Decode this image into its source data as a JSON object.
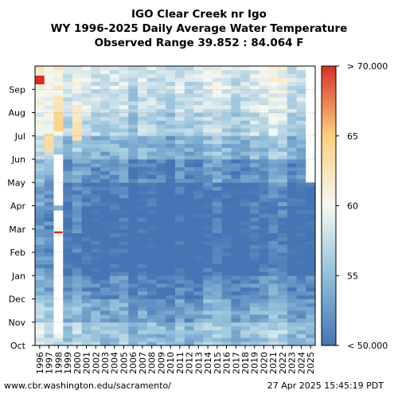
{
  "title": {
    "line1": "IGO Clear Creek nr Igo",
    "line2": "WY 1996-2025 Daily Average Water Temperature",
    "line3": "Observed Range 39.852 : 84.064 F"
  },
  "footer": {
    "source": "www.cbr.washington.edu/sacramento/",
    "timestamp": "27 Apr 2025 15:45:19 PDT"
  },
  "chart_data": {
    "type": "heatmap",
    "title": "IGO Clear Creek nr Igo WY 1996-2025 Daily Average Water Temperature",
    "unit": "F",
    "x": [
      "1996",
      "1997",
      "1998",
      "1999",
      "2000",
      "2001",
      "2002",
      "2003",
      "2004",
      "2005",
      "2006",
      "2007",
      "2008",
      "2009",
      "2010",
      "2011",
      "2012",
      "2013",
      "2014",
      "2015",
      "2016",
      "2017",
      "2018",
      "2019",
      "2020",
      "2021",
      "2022",
      "2023",
      "2024",
      "2025"
    ],
    "y_months": [
      "Oct",
      "Nov",
      "Dec",
      "Jan",
      "Feb",
      "Mar",
      "Apr",
      "May",
      "Jun",
      "Jul",
      "Aug",
      "Sep"
    ],
    "colorbar": {
      "min": 50,
      "max": 70,
      "ticks": [
        "< 50.000",
        "55",
        "60",
        "65",
        "> 70.000"
      ],
      "tick_values": [
        50,
        55,
        60,
        65,
        70
      ]
    },
    "monthly_typical_F": {
      "Oct": 55,
      "Nov": 53,
      "Dec": 51,
      "Jan": 49,
      "Feb": 49,
      "Mar": 49,
      "Apr": 49.5,
      "May": 51.5,
      "Jun": 54,
      "Jul": 56.5,
      "Aug": 57.5,
      "Sep": 58
    },
    "year_offsets_F": [
      3.5,
      2.5,
      3.0,
      0.5,
      2.0,
      1.0,
      0.5,
      0.0,
      0.5,
      1.0,
      -1.0,
      0.5,
      0.0,
      -0.5,
      -1.0,
      0.5,
      -0.5,
      0.0,
      1.0,
      1.5,
      0.5,
      -0.5,
      0.0,
      1.0,
      1.0,
      2.0,
      2.0,
      0.0,
      0.0,
      0.0
    ],
    "observed_range_F": [
      39.852,
      84.064
    ]
  }
}
